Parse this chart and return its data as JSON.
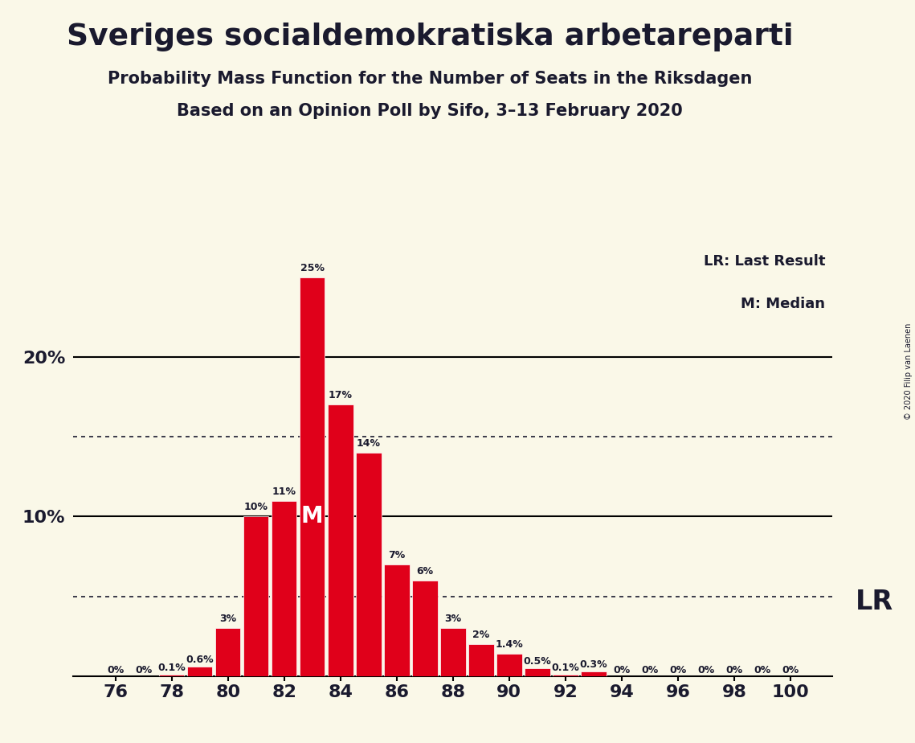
{
  "title": "Sveriges socialdemokratiska arbetareparti",
  "subtitle1": "Probability Mass Function for the Number of Seats in the Riksdagen",
  "subtitle2": "Based on an Opinion Poll by Sifo, 3–13 February 2020",
  "copyright": "© 2020 Filip van Laenen",
  "seats": [
    76,
    77,
    78,
    79,
    80,
    81,
    82,
    83,
    84,
    85,
    86,
    87,
    88,
    89,
    90,
    91,
    92,
    93,
    94,
    95,
    96,
    97,
    98,
    99,
    100
  ],
  "probabilities": [
    0.0,
    0.0,
    0.1,
    0.6,
    3.0,
    10.0,
    11.0,
    25.0,
    17.0,
    14.0,
    7.0,
    6.0,
    3.0,
    2.0,
    1.4,
    0.5,
    0.1,
    0.3,
    0.0,
    0.0,
    0.0,
    0.0,
    0.0,
    0.0,
    0.0
  ],
  "bar_color": "#e0001a",
  "background_color": "#faf8e8",
  "text_color": "#1a1a2e",
  "bar_labels": [
    "0%",
    "0%",
    "0.1%",
    "0.6%",
    "3%",
    "10%",
    "11%",
    "25%",
    "17%",
    "14%",
    "7%",
    "6%",
    "3%",
    "2%",
    "1.4%",
    "0.5%",
    "0.1%",
    "0.3%",
    "0%",
    "0%",
    "0%",
    "0%",
    "0%",
    "0%",
    "0%"
  ],
  "median_seat": 83,
  "lr_seat": 100,
  "dotted_gridlines": [
    5.0,
    15.0
  ],
  "solid_gridlines": [
    10.0,
    20.0
  ],
  "legend_lr": "LR: Last Result",
  "legend_m": "M: Median",
  "lr_label": "LR",
  "ylim": [
    0,
    27
  ],
  "xlim": [
    74.5,
    101.5
  ]
}
